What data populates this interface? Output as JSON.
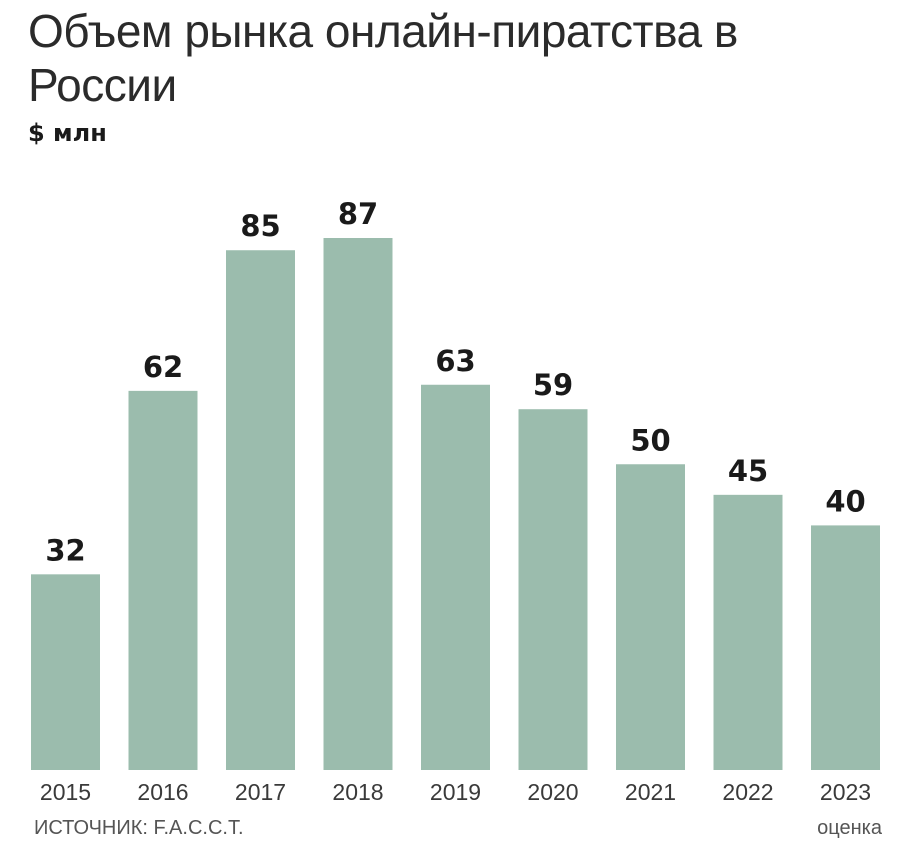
{
  "header": {
    "title": "Объем рынка онлайн-пиратства в России",
    "unit": "$ млн"
  },
  "footer": {
    "source": "ИСТОЧНИК: F.A.C.C.T.",
    "estimate_note": "оценка"
  },
  "colors": {
    "bar": "#9bbcad",
    "value_label": "#1a1a1a",
    "tick_label": "#3a3a3a"
  },
  "chart_data": {
    "type": "bar",
    "title": "Объем рынка онлайн-пиратства в России",
    "ylabel": "$ млн",
    "xlabel": "",
    "categories": [
      "2015",
      "2016",
      "2017",
      "2018",
      "2019",
      "2020",
      "2021",
      "2022",
      "2023"
    ],
    "values": [
      32,
      62,
      85,
      87,
      63,
      59,
      50,
      45,
      40
    ],
    "ylim": [
      0,
      87
    ],
    "grid": false,
    "legend": "none",
    "data_labels": true
  }
}
